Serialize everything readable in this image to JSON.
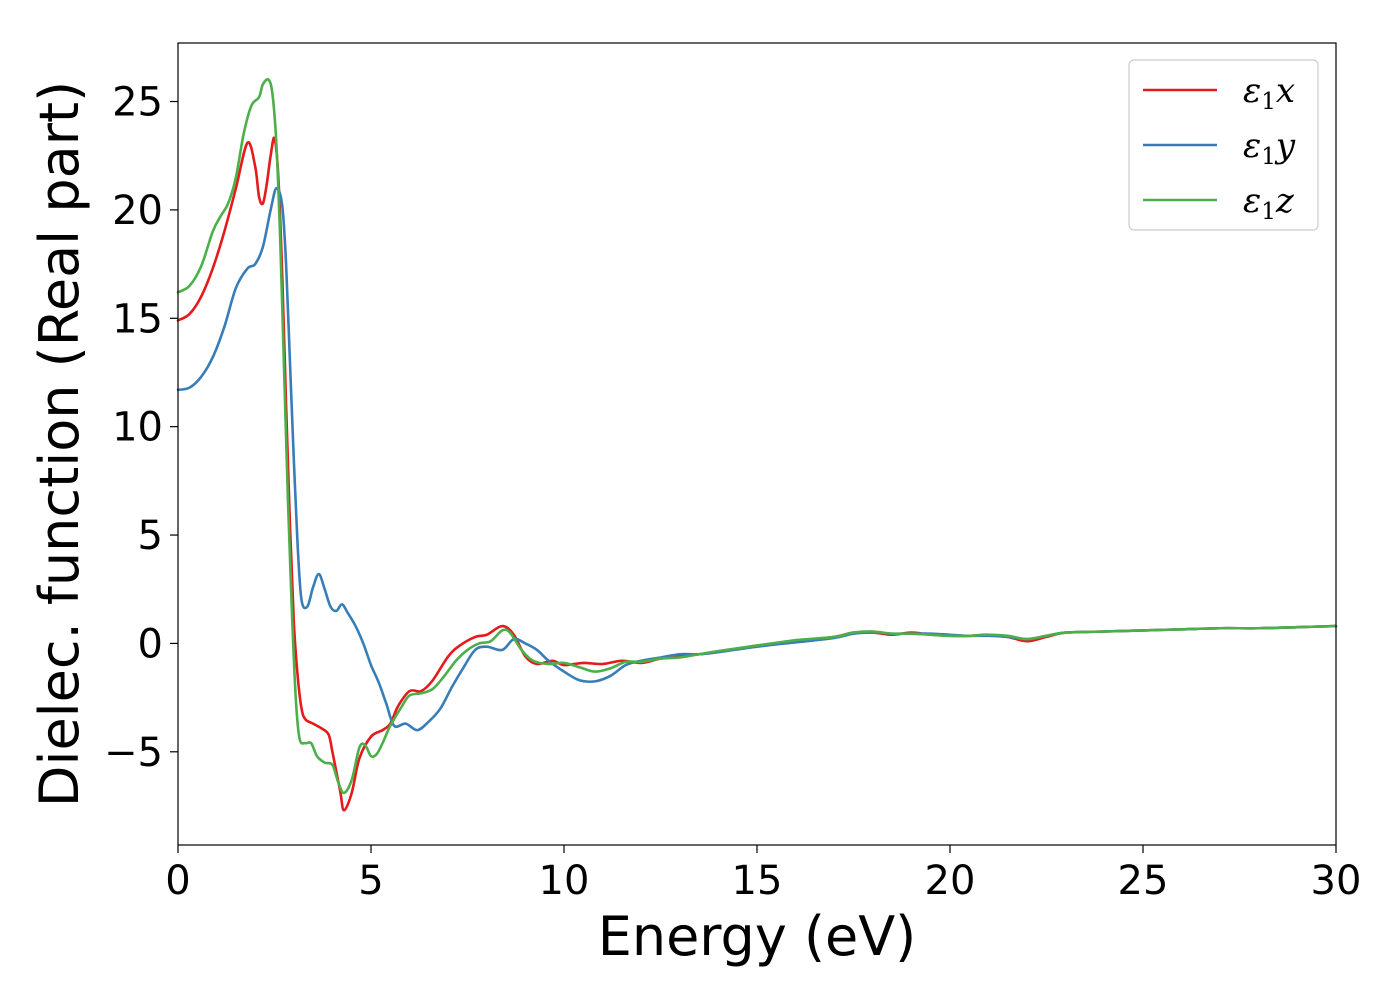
{
  "chart_data": {
    "type": "line",
    "xlabel": "Energy (eV)",
    "ylabel": "Dielec. function (Real part)",
    "xlim": [
      0,
      30
    ],
    "ylim": [
      -9.3,
      27.7
    ],
    "x_ticks": [
      0,
      5,
      10,
      15,
      20,
      25,
      30
    ],
    "y_ticks": [
      -5,
      0,
      5,
      10,
      15,
      20,
      25
    ],
    "y_tick_labels": [
      "−5",
      "0",
      "5",
      "10",
      "15",
      "20",
      "25"
    ],
    "legend_position": "top-right",
    "grid": false,
    "series": [
      {
        "name": "ε1x",
        "legend_base": "ε",
        "legend_sub": "1",
        "legend_tail": "x",
        "color": "#e41a1c",
        "points": [
          [
            0,
            14.9
          ],
          [
            0.3,
            15.2
          ],
          [
            0.6,
            16.0
          ],
          [
            0.9,
            17.3
          ],
          [
            1.2,
            19.0
          ],
          [
            1.5,
            21.0
          ],
          [
            1.8,
            23.1
          ],
          [
            2.0,
            22.0
          ],
          [
            2.1,
            20.6
          ],
          [
            2.2,
            20.3
          ],
          [
            2.3,
            21.2
          ],
          [
            2.4,
            22.5
          ],
          [
            2.5,
            23.3
          ],
          [
            2.6,
            21.5
          ],
          [
            2.7,
            17.0
          ],
          [
            2.8,
            11.0
          ],
          [
            2.9,
            5.5
          ],
          [
            3.0,
            1.0
          ],
          [
            3.1,
            -1.5
          ],
          [
            3.2,
            -3.0
          ],
          [
            3.3,
            -3.5
          ],
          [
            3.5,
            -3.7
          ],
          [
            3.7,
            -3.9
          ],
          [
            3.9,
            -4.2
          ],
          [
            4.0,
            -5.0
          ],
          [
            4.2,
            -6.8
          ],
          [
            4.3,
            -7.7
          ],
          [
            4.5,
            -6.9
          ],
          [
            4.7,
            -5.3
          ],
          [
            5.0,
            -4.3
          ],
          [
            5.3,
            -4.0
          ],
          [
            5.5,
            -3.7
          ],
          [
            5.7,
            -2.9
          ],
          [
            6.0,
            -2.2
          ],
          [
            6.3,
            -2.2
          ],
          [
            6.6,
            -1.7
          ],
          [
            7.0,
            -0.6
          ],
          [
            7.3,
            -0.1
          ],
          [
            7.7,
            0.3
          ],
          [
            8.0,
            0.4
          ],
          [
            8.4,
            0.8
          ],
          [
            8.7,
            0.4
          ],
          [
            9.0,
            -0.6
          ],
          [
            9.3,
            -0.95
          ],
          [
            9.7,
            -0.8
          ],
          [
            10.0,
            -1.0
          ],
          [
            10.5,
            -0.9
          ],
          [
            11.0,
            -0.95
          ],
          [
            11.5,
            -0.8
          ],
          [
            12.0,
            -0.9
          ],
          [
            12.5,
            -0.7
          ],
          [
            13.0,
            -0.6
          ],
          [
            13.5,
            -0.5
          ],
          [
            14.0,
            -0.4
          ],
          [
            15.0,
            -0.1
          ],
          [
            16.0,
            0.1
          ],
          [
            17.0,
            0.3
          ],
          [
            17.5,
            0.5
          ],
          [
            18.0,
            0.5
          ],
          [
            18.5,
            0.4
          ],
          [
            19.0,
            0.5
          ],
          [
            19.5,
            0.4
          ],
          [
            20.0,
            0.35
          ],
          [
            20.5,
            0.35
          ],
          [
            21.0,
            0.4
          ],
          [
            21.5,
            0.3
          ],
          [
            22.0,
            0.1
          ],
          [
            22.5,
            0.3
          ],
          [
            23.0,
            0.5
          ],
          [
            24.0,
            0.55
          ],
          [
            25.0,
            0.6
          ],
          [
            26.0,
            0.65
          ],
          [
            27.0,
            0.7
          ],
          [
            28.0,
            0.7
          ],
          [
            29.0,
            0.75
          ],
          [
            30.0,
            0.8
          ]
        ]
      },
      {
        "name": "ε1y",
        "legend_base": "ε",
        "legend_sub": "1",
        "legend_tail": "y",
        "color": "#377eb8",
        "points": [
          [
            0,
            11.7
          ],
          [
            0.3,
            11.8
          ],
          [
            0.6,
            12.3
          ],
          [
            0.9,
            13.2
          ],
          [
            1.2,
            14.6
          ],
          [
            1.5,
            16.4
          ],
          [
            1.8,
            17.3
          ],
          [
            2.0,
            17.5
          ],
          [
            2.2,
            18.3
          ],
          [
            2.4,
            20.0
          ],
          [
            2.55,
            21.0
          ],
          [
            2.7,
            20.2
          ],
          [
            2.8,
            17.5
          ],
          [
            2.9,
            13.0
          ],
          [
            3.0,
            8.5
          ],
          [
            3.1,
            4.5
          ],
          [
            3.2,
            2.0
          ],
          [
            3.35,
            1.7
          ],
          [
            3.5,
            2.6
          ],
          [
            3.65,
            3.2
          ],
          [
            3.8,
            2.5
          ],
          [
            3.95,
            1.7
          ],
          [
            4.1,
            1.5
          ],
          [
            4.25,
            1.8
          ],
          [
            4.4,
            1.4
          ],
          [
            4.6,
            0.8
          ],
          [
            4.8,
            0.0
          ],
          [
            5.0,
            -1.0
          ],
          [
            5.2,
            -1.8
          ],
          [
            5.4,
            -2.8
          ],
          [
            5.6,
            -3.8
          ],
          [
            5.9,
            -3.7
          ],
          [
            6.2,
            -4.0
          ],
          [
            6.5,
            -3.6
          ],
          [
            6.8,
            -3.0
          ],
          [
            7.1,
            -2.0
          ],
          [
            7.4,
            -1.1
          ],
          [
            7.7,
            -0.3
          ],
          [
            8.0,
            -0.15
          ],
          [
            8.4,
            -0.3
          ],
          [
            8.7,
            0.2
          ],
          [
            9.0,
            0.0
          ],
          [
            9.3,
            -0.3
          ],
          [
            9.6,
            -0.8
          ],
          [
            10.0,
            -1.3
          ],
          [
            10.4,
            -1.7
          ],
          [
            10.8,
            -1.75
          ],
          [
            11.2,
            -1.5
          ],
          [
            11.6,
            -1.0
          ],
          [
            12.0,
            -0.8
          ],
          [
            12.5,
            -0.65
          ],
          [
            13.0,
            -0.5
          ],
          [
            13.5,
            -0.5
          ],
          [
            14.0,
            -0.4
          ],
          [
            15.0,
            -0.15
          ],
          [
            16.0,
            0.05
          ],
          [
            17.0,
            0.25
          ],
          [
            17.5,
            0.45
          ],
          [
            18.0,
            0.5
          ],
          [
            18.5,
            0.45
          ],
          [
            19.0,
            0.45
          ],
          [
            19.5,
            0.45
          ],
          [
            20.0,
            0.4
          ],
          [
            20.5,
            0.35
          ],
          [
            21.0,
            0.35
          ],
          [
            21.5,
            0.3
          ],
          [
            22.0,
            0.2
          ],
          [
            22.5,
            0.35
          ],
          [
            23.0,
            0.5
          ],
          [
            24.0,
            0.55
          ],
          [
            25.0,
            0.6
          ],
          [
            26.0,
            0.65
          ],
          [
            27.0,
            0.7
          ],
          [
            28.0,
            0.7
          ],
          [
            29.0,
            0.75
          ],
          [
            30.0,
            0.8
          ]
        ]
      },
      {
        "name": "ε1z",
        "legend_base": "ε",
        "legend_sub": "1",
        "legend_tail": "z",
        "color": "#4daf4a",
        "points": [
          [
            0,
            16.2
          ],
          [
            0.3,
            16.5
          ],
          [
            0.6,
            17.4
          ],
          [
            0.9,
            19.0
          ],
          [
            1.1,
            19.7
          ],
          [
            1.3,
            20.3
          ],
          [
            1.5,
            21.5
          ],
          [
            1.7,
            23.5
          ],
          [
            1.9,
            24.8
          ],
          [
            2.1,
            25.2
          ],
          [
            2.2,
            25.8
          ],
          [
            2.35,
            26.0
          ],
          [
            2.45,
            25.3
          ],
          [
            2.55,
            23.0
          ],
          [
            2.65,
            18.5
          ],
          [
            2.75,
            12.5
          ],
          [
            2.85,
            6.5
          ],
          [
            2.95,
            1.5
          ],
          [
            3.05,
            -2.5
          ],
          [
            3.15,
            -4.4
          ],
          [
            3.3,
            -4.6
          ],
          [
            3.45,
            -4.6
          ],
          [
            3.6,
            -5.2
          ],
          [
            3.8,
            -5.5
          ],
          [
            4.0,
            -5.6
          ],
          [
            4.15,
            -6.4
          ],
          [
            4.3,
            -6.9
          ],
          [
            4.5,
            -6.3
          ],
          [
            4.7,
            -4.8
          ],
          [
            4.85,
            -4.7
          ],
          [
            5.0,
            -5.2
          ],
          [
            5.15,
            -5.1
          ],
          [
            5.3,
            -4.6
          ],
          [
            5.5,
            -3.8
          ],
          [
            5.8,
            -2.9
          ],
          [
            6.0,
            -2.4
          ],
          [
            6.3,
            -2.3
          ],
          [
            6.6,
            -2.1
          ],
          [
            6.9,
            -1.5
          ],
          [
            7.2,
            -0.8
          ],
          [
            7.5,
            -0.3
          ],
          [
            7.8,
            0.0
          ],
          [
            8.1,
            0.1
          ],
          [
            8.4,
            0.6
          ],
          [
            8.6,
            0.5
          ],
          [
            8.9,
            -0.3
          ],
          [
            9.2,
            -0.8
          ],
          [
            9.6,
            -0.95
          ],
          [
            10.0,
            -0.9
          ],
          [
            10.4,
            -1.1
          ],
          [
            10.8,
            -1.3
          ],
          [
            11.2,
            -1.15
          ],
          [
            11.6,
            -0.85
          ],
          [
            12.0,
            -0.85
          ],
          [
            12.5,
            -0.7
          ],
          [
            13.0,
            -0.65
          ],
          [
            13.5,
            -0.5
          ],
          [
            14.0,
            -0.35
          ],
          [
            15.0,
            -0.1
          ],
          [
            16.0,
            0.15
          ],
          [
            17.0,
            0.3
          ],
          [
            17.5,
            0.5
          ],
          [
            18.0,
            0.55
          ],
          [
            18.5,
            0.45
          ],
          [
            19.0,
            0.45
          ],
          [
            19.5,
            0.4
          ],
          [
            20.0,
            0.35
          ],
          [
            20.5,
            0.35
          ],
          [
            21.0,
            0.4
          ],
          [
            21.5,
            0.35
          ],
          [
            22.0,
            0.2
          ],
          [
            22.5,
            0.35
          ],
          [
            23.0,
            0.5
          ],
          [
            24.0,
            0.55
          ],
          [
            25.0,
            0.6
          ],
          [
            26.0,
            0.65
          ],
          [
            27.0,
            0.7
          ],
          [
            28.0,
            0.7
          ],
          [
            29.0,
            0.75
          ],
          [
            30.0,
            0.8
          ]
        ]
      }
    ]
  }
}
